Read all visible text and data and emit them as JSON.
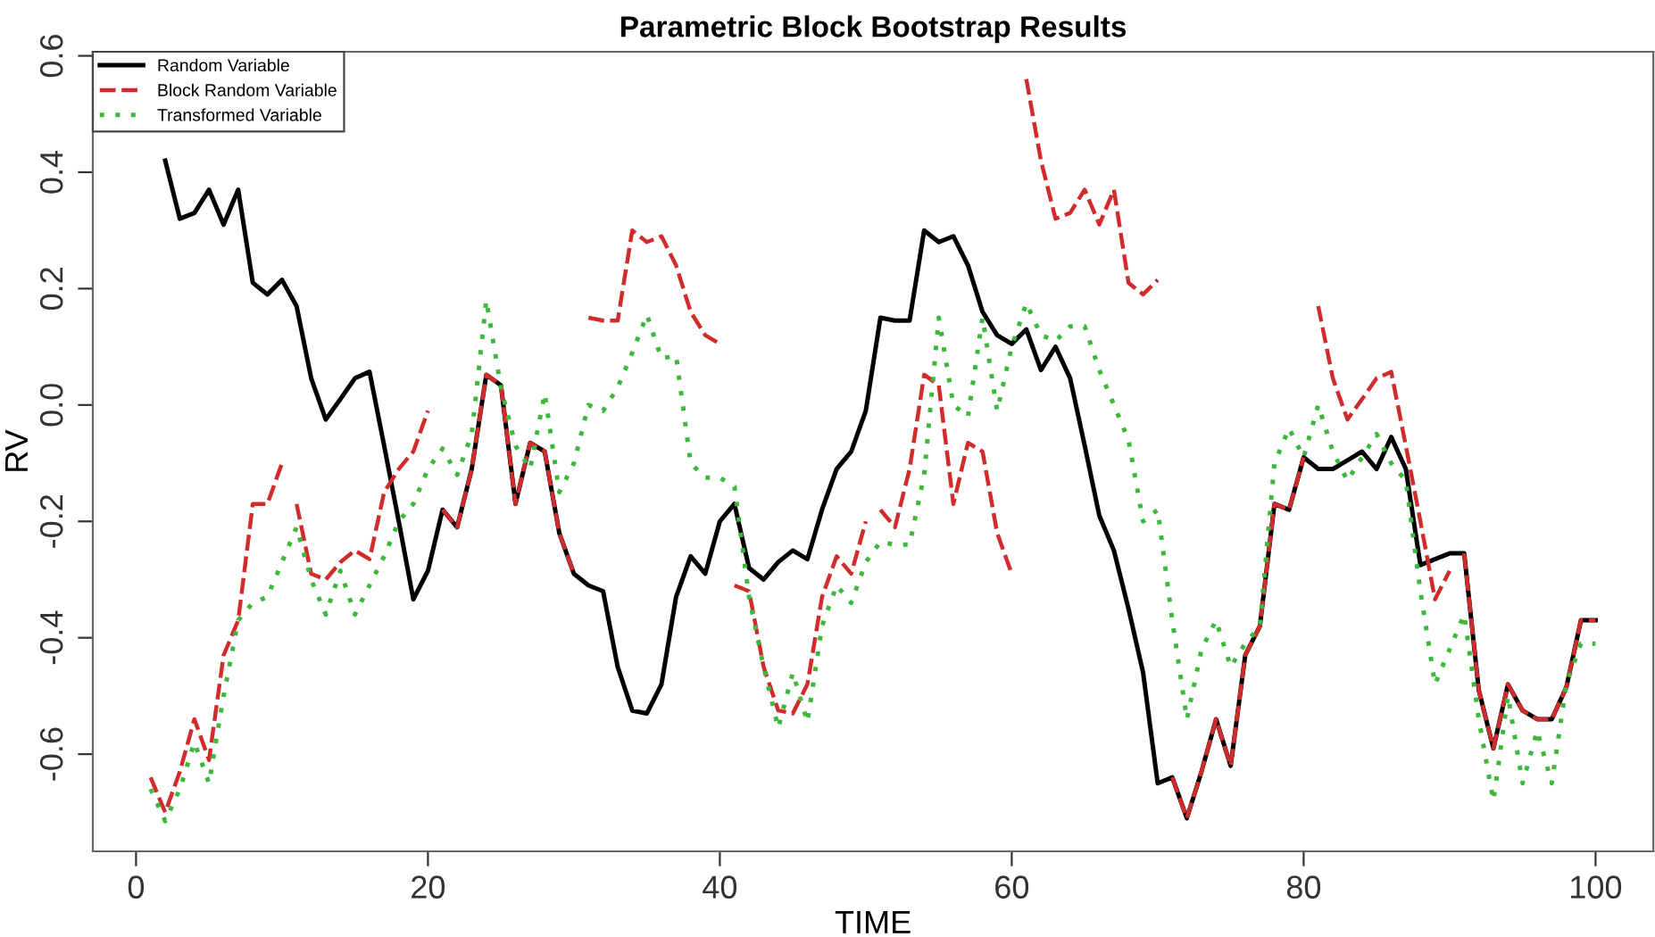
{
  "chart_data": {
    "type": "line",
    "title": "Parametric Block Bootstrap Results",
    "xlabel": "TIME",
    "ylabel": "RV",
    "x": [
      1,
      2,
      3,
      4,
      5,
      6,
      7,
      8,
      9,
      10,
      11,
      12,
      13,
      14,
      15,
      16,
      17,
      18,
      19,
      20,
      21,
      22,
      23,
      24,
      25,
      26,
      27,
      28,
      29,
      30,
      31,
      32,
      33,
      34,
      35,
      36,
      37,
      38,
      39,
      40,
      41,
      42,
      43,
      44,
      45,
      46,
      47,
      48,
      49,
      50,
      51,
      52,
      53,
      54,
      55,
      56,
      57,
      58,
      59,
      60,
      61,
      62,
      63,
      64,
      65,
      66,
      67,
      68,
      69,
      70,
      71,
      72,
      73,
      74,
      75,
      76,
      77,
      78,
      79,
      80,
      81,
      82,
      83,
      84,
      85,
      86,
      87,
      88,
      89,
      90,
      91,
      92,
      93,
      94,
      95,
      96,
      97,
      98,
      99,
      100
    ],
    "series": [
      {
        "name": "Random Variable",
        "color": "#000000",
        "line_style": "solid",
        "values": [
          null,
          0.42,
          0.32,
          0.33,
          0.37,
          0.31,
          0.37,
          0.21,
          0.19,
          0.215,
          0.17,
          0.046,
          -0.025,
          0.01,
          0.046,
          0.057,
          -0.07,
          -0.2,
          -0.334,
          -0.285,
          -0.18,
          -0.21,
          -0.11,
          0.052,
          0.034,
          -0.17,
          -0.065,
          -0.08,
          -0.22,
          -0.29,
          -0.31,
          -0.32,
          -0.45,
          -0.525,
          -0.53,
          -0.48,
          -0.33,
          -0.26,
          -0.29,
          -0.2,
          -0.17,
          -0.28,
          -0.3,
          -0.27,
          -0.25,
          -0.265,
          -0.18,
          -0.11,
          -0.08,
          -0.01,
          0.15,
          0.145,
          0.145,
          0.3,
          0.28,
          0.29,
          0.24,
          0.16,
          0.12,
          0.105,
          0.13,
          0.06,
          0.1,
          0.046,
          -0.07,
          -0.19,
          -0.25,
          -0.35,
          -0.46,
          -0.65,
          -0.64,
          -0.71,
          -0.63,
          -0.54,
          -0.62,
          -0.43,
          -0.38,
          -0.17,
          -0.18,
          -0.09,
          -0.11,
          -0.11,
          -0.095,
          -0.08,
          -0.11,
          -0.055,
          -0.11,
          -0.275,
          -0.265,
          -0.255,
          -0.255,
          -0.49,
          -0.59,
          -0.48,
          -0.525,
          -0.54,
          -0.54,
          -0.485,
          -0.37,
          -0.37
        ]
      },
      {
        "name": "Block Random Variable",
        "color": "#d22b2b",
        "line_style": "dashed",
        "x": [
          1,
          2,
          3,
          4,
          5,
          6,
          7,
          8,
          9,
          10,
          10.5,
          11,
          12,
          13,
          14,
          15,
          16,
          17,
          18,
          19,
          20,
          20.5,
          21,
          22,
          23,
          24,
          25,
          26,
          27,
          28,
          29,
          30,
          30.5,
          31,
          32,
          33,
          34,
          35,
          36,
          37,
          38,
          39,
          40,
          40.5,
          41,
          42,
          43,
          44,
          45,
          46,
          47,
          48,
          49,
          50,
          50.5,
          51,
          52,
          53,
          54,
          55,
          56,
          57,
          58,
          59,
          60,
          60.5,
          61,
          62,
          63,
          64,
          65,
          66,
          67,
          68,
          69,
          70,
          70.5,
          71,
          72,
          73,
          74,
          75,
          76,
          77,
          78,
          79,
          80,
          80.5,
          81,
          82,
          83,
          84,
          85,
          86,
          87,
          88,
          89,
          90,
          90.5,
          91,
          92,
          93,
          94,
          95,
          96,
          97,
          98,
          99,
          100
        ],
        "values": [
          -0.64,
          -0.7,
          -0.63,
          -0.54,
          -0.61,
          -0.43,
          -0.37,
          -0.17,
          -0.17,
          -0.1,
          null,
          -0.17,
          -0.29,
          -0.3,
          -0.27,
          -0.25,
          -0.265,
          -0.15,
          -0.11,
          -0.08,
          -0.01,
          null,
          -0.18,
          -0.21,
          -0.11,
          0.052,
          0.034,
          -0.17,
          -0.065,
          -0.08,
          -0.22,
          -0.29,
          null,
          0.15,
          0.145,
          0.145,
          0.3,
          0.28,
          0.29,
          0.24,
          0.16,
          0.12,
          0.105,
          null,
          -0.31,
          -0.32,
          -0.45,
          -0.525,
          -0.53,
          -0.48,
          -0.33,
          -0.26,
          -0.29,
          -0.2,
          null,
          -0.18,
          -0.21,
          -0.11,
          0.052,
          0.034,
          -0.17,
          -0.065,
          -0.08,
          -0.22,
          -0.29,
          null,
          0.56,
          0.42,
          0.32,
          0.33,
          0.37,
          0.31,
          0.37,
          0.21,
          0.19,
          0.215,
          null,
          -0.64,
          -0.71,
          -0.63,
          -0.54,
          -0.62,
          -0.43,
          -0.38,
          -0.17,
          -0.18,
          -0.09,
          null,
          0.17,
          0.046,
          -0.025,
          0.01,
          0.046,
          0.057,
          -0.07,
          -0.2,
          -0.334,
          -0.285,
          null,
          -0.255,
          -0.49,
          -0.59,
          -0.48,
          -0.525,
          -0.54,
          -0.54,
          -0.485,
          -0.37,
          -0.37
        ]
      },
      {
        "name": "Transformed Variable",
        "color": "#3cb83c",
        "line_style": "dotted",
        "values": [
          -0.66,
          -0.715,
          -0.66,
          -0.58,
          -0.65,
          -0.5,
          -0.37,
          -0.34,
          -0.33,
          -0.27,
          -0.21,
          -0.3,
          -0.36,
          -0.285,
          -0.36,
          -0.31,
          -0.26,
          -0.2,
          -0.17,
          -0.11,
          -0.075,
          -0.12,
          -0.05,
          0.18,
          0.03,
          -0.07,
          -0.11,
          0.02,
          -0.15,
          -0.1,
          0.0,
          -0.01,
          0.03,
          0.09,
          0.155,
          0.08,
          0.085,
          -0.1,
          -0.125,
          -0.125,
          -0.14,
          -0.33,
          -0.45,
          -0.555,
          -0.46,
          -0.545,
          -0.38,
          -0.31,
          -0.34,
          -0.27,
          -0.235,
          -0.24,
          -0.24,
          -0.12,
          0.15,
          0.0,
          -0.02,
          0.15,
          -0.01,
          0.1,
          0.175,
          0.12,
          0.11,
          0.135,
          0.135,
          0.06,
          0.0,
          -0.06,
          -0.2,
          -0.18,
          -0.37,
          -0.54,
          -0.42,
          -0.37,
          -0.45,
          -0.41,
          -0.38,
          -0.1,
          -0.04,
          -0.09,
          0.0,
          -0.08,
          -0.13,
          -0.09,
          -0.05,
          -0.1,
          -0.13,
          -0.32,
          -0.48,
          -0.42,
          -0.36,
          -0.54,
          -0.68,
          -0.5,
          -0.65,
          -0.56,
          -0.65,
          -0.48,
          -0.41,
          -0.41
        ]
      }
    ],
    "xlim": [
      -2.96,
      103.96
    ],
    "ylim": [
      -0.767,
      0.607
    ],
    "xticks": [
      0,
      20,
      40,
      60,
      80,
      100
    ],
    "yticks": [
      {
        "value": -0.6,
        "label": "-0.6"
      },
      {
        "value": -0.4,
        "label": "-0.4"
      },
      {
        "value": -0.2,
        "label": "-0.2"
      },
      {
        "value": 0,
        "label": "0.0"
      },
      {
        "value": 0.2,
        "label": "0.2"
      },
      {
        "value": 0.4,
        "label": "0.4"
      },
      {
        "value": 0.6,
        "label": "0.6"
      }
    ],
    "legend": "top left",
    "grid": false
  }
}
